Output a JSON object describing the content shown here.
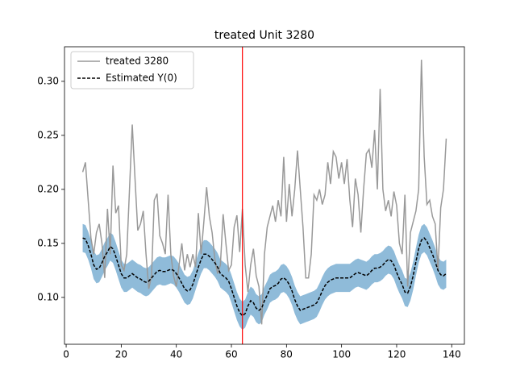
{
  "chart_data": {
    "type": "line",
    "title": "treated Unit 3280",
    "x": [
      6,
      7,
      8,
      9,
      10,
      11,
      12,
      13,
      14,
      15,
      16,
      17,
      18,
      19,
      20,
      21,
      22,
      23,
      24,
      25,
      26,
      27,
      28,
      29,
      30,
      31,
      32,
      33,
      34,
      35,
      36,
      37,
      38,
      39,
      40,
      41,
      42,
      43,
      44,
      45,
      46,
      47,
      48,
      49,
      50,
      51,
      52,
      53,
      54,
      55,
      56,
      57,
      58,
      59,
      60,
      61,
      62,
      63,
      64,
      65,
      66,
      67,
      68,
      69,
      70,
      71,
      72,
      73,
      74,
      75,
      76,
      77,
      78,
      79,
      80,
      81,
      82,
      83,
      84,
      85,
      86,
      87,
      88,
      89,
      90,
      91,
      92,
      93,
      94,
      95,
      96,
      97,
      98,
      99,
      100,
      101,
      102,
      103,
      104,
      105,
      106,
      107,
      108,
      109,
      110,
      111,
      112,
      113,
      114,
      115,
      116,
      117,
      118,
      119,
      120,
      121,
      122,
      123,
      124,
      125,
      126,
      127,
      128,
      129,
      130,
      131,
      132,
      133,
      134,
      135,
      136,
      137,
      138
    ],
    "series": [
      {
        "name": "treated 3280",
        "color": "#999999",
        "dash": false,
        "values": [
          0.216,
          0.225,
          0.19,
          0.155,
          0.14,
          0.16,
          0.168,
          0.15,
          0.118,
          0.182,
          0.14,
          0.222,
          0.178,
          0.185,
          0.13,
          0.125,
          0.14,
          0.2,
          0.26,
          0.21,
          0.162,
          0.168,
          0.18,
          0.14,
          0.108,
          0.12,
          0.19,
          0.196,
          0.157,
          0.15,
          0.14,
          0.195,
          0.14,
          0.12,
          0.11,
          0.13,
          0.15,
          0.125,
          0.14,
          0.128,
          0.14,
          0.128,
          0.178,
          0.14,
          0.17,
          0.202,
          0.175,
          0.16,
          0.135,
          0.122,
          0.13,
          0.177,
          0.15,
          0.125,
          0.13,
          0.165,
          0.176,
          0.142,
          0.182,
          0.13,
          0.105,
          0.13,
          0.145,
          0.12,
          0.11,
          0.075,
          0.14,
          0.165,
          0.175,
          0.185,
          0.17,
          0.19,
          0.175,
          0.23,
          0.17,
          0.205,
          0.175,
          0.2,
          0.236,
          0.2,
          0.165,
          0.118,
          0.118,
          0.14,
          0.195,
          0.19,
          0.2,
          0.186,
          0.195,
          0.225,
          0.205,
          0.235,
          0.23,
          0.21,
          0.225,
          0.205,
          0.228,
          0.19,
          0.165,
          0.21,
          0.195,
          0.16,
          0.2,
          0.233,
          0.237,
          0.22,
          0.255,
          0.2,
          0.293,
          0.2,
          0.18,
          0.19,
          0.175,
          0.198,
          0.185,
          0.15,
          0.14,
          0.195,
          0.11,
          0.16,
          0.17,
          0.18,
          0.2,
          0.32,
          0.23,
          0.186,
          0.19,
          0.175,
          0.168,
          0.125,
          0.183,
          0.2,
          0.247
        ]
      },
      {
        "name": "Estimated Y(0)",
        "color": "#000000",
        "dash": true,
        "values": [
          0.155,
          0.154,
          0.148,
          0.14,
          0.13,
          0.126,
          0.127,
          0.132,
          0.138,
          0.142,
          0.147,
          0.145,
          0.138,
          0.13,
          0.122,
          0.118,
          0.118,
          0.12,
          0.122,
          0.12,
          0.118,
          0.117,
          0.115,
          0.114,
          0.115,
          0.118,
          0.121,
          0.124,
          0.125,
          0.124,
          0.124,
          0.125,
          0.126,
          0.125,
          0.122,
          0.118,
          0.113,
          0.108,
          0.106,
          0.107,
          0.112,
          0.12,
          0.128,
          0.135,
          0.14,
          0.14,
          0.138,
          0.135,
          0.132,
          0.128,
          0.122,
          0.12,
          0.118,
          0.115,
          0.108,
          0.1,
          0.092,
          0.086,
          0.083,
          0.085,
          0.092,
          0.097,
          0.095,
          0.09,
          0.088,
          0.09,
          0.097,
          0.102,
          0.108,
          0.11,
          0.111,
          0.113,
          0.117,
          0.118,
          0.116,
          0.112,
          0.106,
          0.098,
          0.092,
          0.088,
          0.089,
          0.09,
          0.091,
          0.092,
          0.093,
          0.095,
          0.1,
          0.106,
          0.111,
          0.114,
          0.116,
          0.117,
          0.118,
          0.118,
          0.118,
          0.118,
          0.118,
          0.118,
          0.12,
          0.122,
          0.123,
          0.122,
          0.121,
          0.12,
          0.122,
          0.125,
          0.127,
          0.127,
          0.128,
          0.13,
          0.133,
          0.135,
          0.134,
          0.13,
          0.123,
          0.117,
          0.112,
          0.105,
          0.104,
          0.11,
          0.12,
          0.133,
          0.145,
          0.153,
          0.155,
          0.152,
          0.146,
          0.14,
          0.133,
          0.125,
          0.121,
          0.12,
          0.122
        ]
      }
    ],
    "interval": {
      "color": "#1f77b4",
      "lower": [
        0.142,
        0.141,
        0.135,
        0.127,
        0.117,
        0.113,
        0.114,
        0.119,
        0.125,
        0.129,
        0.134,
        0.132,
        0.125,
        0.117,
        0.109,
        0.105,
        0.105,
        0.107,
        0.109,
        0.107,
        0.105,
        0.104,
        0.102,
        0.101,
        0.102,
        0.105,
        0.108,
        0.111,
        0.112,
        0.111,
        0.111,
        0.112,
        0.113,
        0.112,
        0.109,
        0.105,
        0.1,
        0.095,
        0.093,
        0.094,
        0.099,
        0.107,
        0.115,
        0.122,
        0.127,
        0.127,
        0.125,
        0.122,
        0.119,
        0.115,
        0.109,
        0.107,
        0.105,
        0.102,
        0.095,
        0.087,
        0.079,
        0.073,
        0.07,
        0.072,
        0.079,
        0.084,
        0.082,
        0.077,
        0.075,
        0.077,
        0.084,
        0.089,
        0.095,
        0.097,
        0.098,
        0.1,
        0.104,
        0.105,
        0.103,
        0.099,
        0.093,
        0.085,
        0.079,
        0.075,
        0.076,
        0.077,
        0.078,
        0.079,
        0.08,
        0.082,
        0.087,
        0.093,
        0.098,
        0.101,
        0.103,
        0.104,
        0.105,
        0.105,
        0.105,
        0.105,
        0.105,
        0.105,
        0.107,
        0.109,
        0.11,
        0.109,
        0.108,
        0.107,
        0.109,
        0.112,
        0.114,
        0.114,
        0.115,
        0.117,
        0.12,
        0.122,
        0.121,
        0.117,
        0.11,
        0.104,
        0.099,
        0.092,
        0.091,
        0.097,
        0.107,
        0.12,
        0.132,
        0.14,
        0.142,
        0.139,
        0.133,
        0.127,
        0.12,
        0.112,
        0.108,
        0.107,
        0.109
      ],
      "upper": [
        0.168,
        0.167,
        0.161,
        0.153,
        0.143,
        0.139,
        0.14,
        0.145,
        0.151,
        0.155,
        0.16,
        0.158,
        0.151,
        0.143,
        0.135,
        0.131,
        0.131,
        0.133,
        0.135,
        0.133,
        0.131,
        0.13,
        0.128,
        0.127,
        0.128,
        0.131,
        0.134,
        0.137,
        0.138,
        0.137,
        0.137,
        0.138,
        0.139,
        0.138,
        0.135,
        0.131,
        0.126,
        0.121,
        0.119,
        0.12,
        0.125,
        0.133,
        0.141,
        0.148,
        0.153,
        0.153,
        0.151,
        0.148,
        0.145,
        0.141,
        0.135,
        0.133,
        0.131,
        0.128,
        0.121,
        0.113,
        0.105,
        0.099,
        0.096,
        0.098,
        0.105,
        0.11,
        0.108,
        0.103,
        0.101,
        0.103,
        0.11,
        0.115,
        0.121,
        0.123,
        0.124,
        0.126,
        0.13,
        0.131,
        0.129,
        0.125,
        0.119,
        0.111,
        0.105,
        0.101,
        0.102,
        0.103,
        0.104,
        0.105,
        0.106,
        0.108,
        0.113,
        0.119,
        0.124,
        0.127,
        0.129,
        0.13,
        0.131,
        0.131,
        0.131,
        0.131,
        0.131,
        0.131,
        0.133,
        0.135,
        0.136,
        0.135,
        0.134,
        0.133,
        0.135,
        0.138,
        0.14,
        0.14,
        0.141,
        0.143,
        0.146,
        0.148,
        0.147,
        0.143,
        0.136,
        0.13,
        0.125,
        0.118,
        0.117,
        0.123,
        0.133,
        0.146,
        0.158,
        0.166,
        0.168,
        0.165,
        0.159,
        0.153,
        0.146,
        0.138,
        0.134,
        0.133,
        0.135
      ]
    },
    "vline": {
      "x": 64,
      "color": "#ff0000"
    },
    "xlim": [
      -0.6,
      144.6
    ],
    "ylim": [
      0.0566,
      0.332
    ],
    "xticks": [
      0,
      20,
      40,
      60,
      80,
      100,
      120,
      140
    ],
    "yticks": [
      {
        "value": 0.1,
        "label": "0.10"
      },
      {
        "value": 0.15,
        "label": "0.15"
      },
      {
        "value": 0.2,
        "label": "0.20"
      },
      {
        "value": 0.25,
        "label": "0.25"
      },
      {
        "value": 0.3,
        "label": "0.30"
      }
    ],
    "legend": "upper left"
  }
}
